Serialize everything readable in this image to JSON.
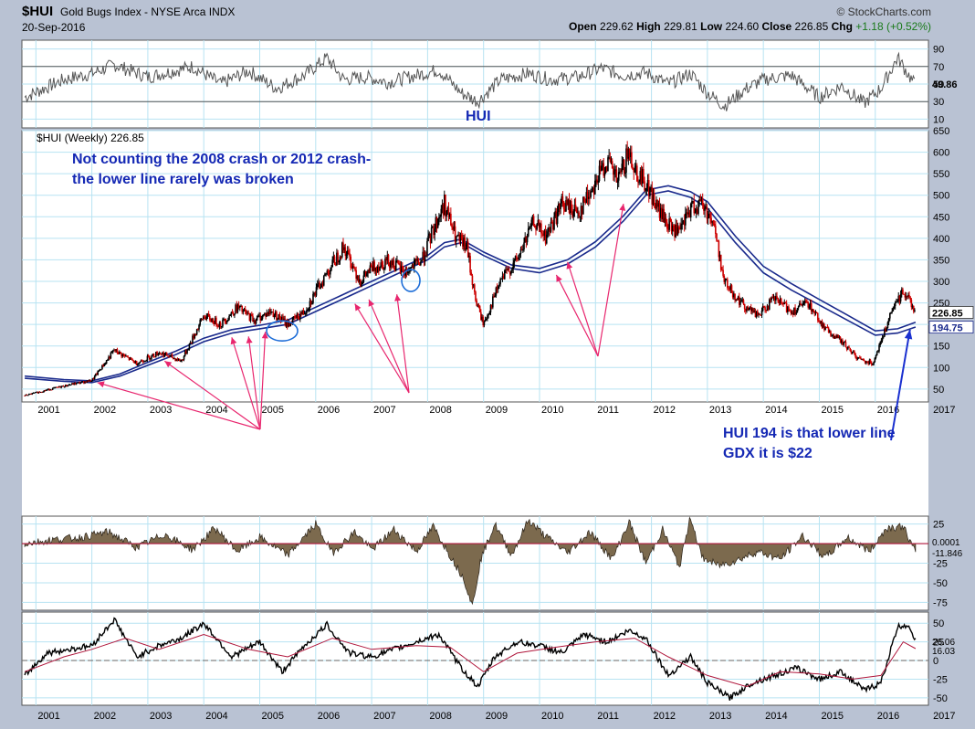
{
  "header": {
    "symbol": "$HUI",
    "name": "Gold Bugs Index - NYSE Arca INDX",
    "source": "© StockCharts.com",
    "date": "20-Sep-2016",
    "open_label": "Open",
    "open": "229.62",
    "high_label": "High",
    "high": "229.81",
    "low_label": "Low",
    "low": "224.60",
    "close_label": "Close",
    "close": "226.85",
    "chg_label": "Chg",
    "chg": "+1.18 (+0.52%)"
  },
  "annotations": {
    "rsi_label": "HUI",
    "note1_line1": "Not counting the 2008 crash or 2012 crash-",
    "note1_line2": "the lower line rarely was broken",
    "note2_line1": "HUI 194 is that lower line",
    "note2_line2": "GDX it is $22"
  },
  "colors": {
    "background": "#b9c2d3",
    "panel": "#ffffff",
    "grid": "#b7e3f2",
    "bar_up": "#000000",
    "bar_down": "#cc0000",
    "moving_average": "#1a2a8c",
    "arrows": "#e8266e",
    "annotation_text": "#1428b4",
    "histogram_fill": "#7c6a4e",
    "signal_line": "#b0173c"
  },
  "chart_data": [
    {
      "type": "line",
      "panel": "rsi",
      "title": "",
      "label": "HUI",
      "ylim": [
        0,
        100
      ],
      "y_ticks": [
        10,
        30,
        50,
        70,
        90
      ],
      "reference_lines": [
        30,
        70
      ],
      "last_value_label": "49.86",
      "x": [
        2000.8,
        2001.5,
        2002.0,
        2002.4,
        2003.0,
        2003.8,
        2004.3,
        2004.8,
        2005.3,
        2005.8,
        2006.2,
        2006.5,
        2006.9,
        2007.3,
        2007.8,
        2008.2,
        2008.6,
        2008.9,
        2009.3,
        2009.8,
        2010.2,
        2010.7,
        2011.1,
        2011.5,
        2011.9,
        2012.3,
        2012.7,
        2013.0,
        2013.3,
        2013.7,
        2014.0,
        2014.5,
        2015.0,
        2015.4,
        2015.8,
        2016.1,
        2016.4,
        2016.7
      ],
      "values": [
        35,
        55,
        62,
        72,
        58,
        70,
        50,
        65,
        45,
        60,
        80,
        55,
        58,
        52,
        60,
        66,
        40,
        30,
        55,
        62,
        55,
        58,
        68,
        60,
        63,
        50,
        62,
        40,
        25,
        45,
        55,
        60,
        35,
        48,
        28,
        45,
        80,
        50
      ],
      "grid": true
    },
    {
      "type": "candlestick",
      "panel": "price",
      "title": "",
      "legend": "$HUI (Weekly) 226.85",
      "ylim": [
        20,
        650
      ],
      "y_ticks": [
        50,
        100,
        150,
        200,
        250,
        300,
        350,
        400,
        450,
        500,
        550,
        600,
        650
      ],
      "x_ticks": [
        "2001",
        "2002",
        "2003",
        "2004",
        "2005",
        "2006",
        "2007",
        "2008",
        "2009",
        "2010",
        "2011",
        "2012",
        "2013",
        "2014",
        "2015",
        "2016",
        "2017"
      ],
      "last_value_labels": [
        "226.85",
        "194.75"
      ],
      "price": {
        "x": [
          2000.8,
          2001.2,
          2001.6,
          2002.0,
          2002.4,
          2002.8,
          2003.2,
          2003.6,
          2004.0,
          2004.3,
          2004.6,
          2004.9,
          2005.2,
          2005.5,
          2005.8,
          2006.2,
          2006.5,
          2006.8,
          2007.0,
          2007.3,
          2007.6,
          2007.9,
          2008.1,
          2008.3,
          2008.5,
          2008.7,
          2008.85,
          2009.0,
          2009.3,
          2009.6,
          2009.9,
          2010.1,
          2010.4,
          2010.7,
          2010.95,
          2011.2,
          2011.4,
          2011.6,
          2011.75,
          2011.9,
          2012.1,
          2012.3,
          2012.5,
          2012.7,
          2012.9,
          2013.1,
          2013.3,
          2013.6,
          2013.9,
          2014.2,
          2014.5,
          2014.8,
          2015.1,
          2015.4,
          2015.7,
          2015.95,
          2016.1,
          2016.3,
          2016.5,
          2016.6,
          2016.72
        ],
        "values": [
          35,
          48,
          60,
          70,
          140,
          110,
          135,
          115,
          220,
          200,
          240,
          210,
          230,
          200,
          230,
          320,
          380,
          300,
          330,
          350,
          320,
          350,
          420,
          480,
          400,
          380,
          260,
          200,
          300,
          350,
          440,
          400,
          480,
          460,
          520,
          580,
          530,
          600,
          550,
          530,
          470,
          430,
          410,
          470,
          480,
          440,
          300,
          250,
          220,
          260,
          230,
          250,
          190,
          160,
          120,
          110,
          160,
          230,
          280,
          260,
          226.85
        ]
      },
      "moving_average_lower": {
        "x": [
          2000.8,
          2001.5,
          2002.0,
          2002.5,
          2003.0,
          2003.5,
          2004.0,
          2004.5,
          2005.0,
          2005.5,
          2006.0,
          2006.5,
          2007.0,
          2007.5,
          2008.0,
          2008.3,
          2008.6,
          2009.0,
          2009.5,
          2010.0,
          2010.5,
          2011.0,
          2011.5,
          2011.9,
          2012.3,
          2012.7,
          2013.0,
          2013.5,
          2014.0,
          2014.5,
          2015.0,
          2015.5,
          2016.0,
          2016.4,
          2016.72
        ],
        "values": [
          75,
          68,
          65,
          80,
          105,
          130,
          160,
          180,
          190,
          200,
          230,
          260,
          290,
          320,
          350,
          380,
          390,
          360,
          330,
          320,
          340,
          380,
          440,
          500,
          510,
          495,
          470,
          390,
          320,
          280,
          245,
          210,
          175,
          180,
          194
        ]
      },
      "moving_average_upper": {
        "x": [
          2000.8,
          2001.5,
          2002.0,
          2002.5,
          2003.0,
          2003.5,
          2004.0,
          2004.5,
          2005.0,
          2005.5,
          2006.0,
          2006.5,
          2007.0,
          2007.5,
          2008.0,
          2008.3,
          2008.6,
          2009.0,
          2009.5,
          2010.0,
          2010.5,
          2011.0,
          2011.5,
          2011.9,
          2012.3,
          2012.7,
          2013.0,
          2013.5,
          2014.0,
          2014.5,
          2015.0,
          2015.5,
          2016.0,
          2016.4,
          2016.72
        ],
        "values": [
          80,
          72,
          69,
          85,
          112,
          138,
          168,
          188,
          198,
          210,
          240,
          270,
          300,
          330,
          360,
          390,
          398,
          368,
          338,
          330,
          350,
          392,
          452,
          512,
          522,
          508,
          485,
          405,
          335,
          295,
          258,
          222,
          185,
          190,
          205
        ]
      },
      "grid": true
    },
    {
      "type": "area",
      "panel": "histogram",
      "title": "",
      "ylim": [
        -85,
        35
      ],
      "y_ticks": [
        25,
        -25,
        -50,
        -75
      ],
      "last_value_labels": [
        "0.0001",
        "-11.846"
      ],
      "x": [
        2000.8,
        2001.3,
        2001.8,
        2002.3,
        2002.8,
        2003.3,
        2003.8,
        2004.2,
        2004.6,
        2005.0,
        2005.5,
        2006.0,
        2006.3,
        2006.7,
        2007.0,
        2007.4,
        2007.8,
        2008.1,
        2008.4,
        2008.65,
        2008.8,
        2008.95,
        2009.2,
        2009.5,
        2009.8,
        2010.1,
        2010.5,
        2010.9,
        2011.3,
        2011.6,
        2011.9,
        2012.2,
        2012.5,
        2012.7,
        2012.9,
        2013.2,
        2013.5,
        2013.9,
        2014.3,
        2014.7,
        2015.1,
        2015.5,
        2015.9,
        2016.2,
        2016.5,
        2016.72
      ],
      "values": [
        0,
        5,
        8,
        15,
        -5,
        12,
        -8,
        20,
        -10,
        8,
        -15,
        25,
        -12,
        15,
        -8,
        18,
        -10,
        22,
        -15,
        -45,
        -80,
        -20,
        25,
        -15,
        30,
        10,
        -12,
        15,
        -20,
        28,
        -25,
        18,
        -30,
        35,
        -18,
        -28,
        -22,
        -10,
        -20,
        10,
        -18,
        8,
        -10,
        20,
        22,
        -12
      ],
      "grid": true
    },
    {
      "type": "line",
      "panel": "oscillator",
      "title": "",
      "ylim": [
        -60,
        65
      ],
      "y_ticks": [
        50,
        25,
        0,
        -25,
        -50
      ],
      "x_ticks": [
        "2001",
        "2002",
        "2003",
        "2004",
        "2005",
        "2006",
        "2007",
        "2008",
        "2009",
        "2010",
        "2011",
        "2012",
        "2013",
        "2014",
        "2015",
        "2016",
        "2017"
      ],
      "last_value_labels": [
        "26.06",
        "16.03"
      ],
      "series": [
        {
          "role": "oscillator",
          "x": [
            2000.8,
            2001.2,
            2001.6,
            2002.0,
            2002.4,
            2002.8,
            2003.2,
            2003.6,
            2004.0,
            2004.5,
            2005.0,
            2005.4,
            2005.8,
            2006.2,
            2006.6,
            2007.0,
            2007.4,
            2007.8,
            2008.2,
            2008.6,
            2008.9,
            2009.2,
            2009.6,
            2010.0,
            2010.4,
            2010.8,
            2011.2,
            2011.6,
            2011.9,
            2012.3,
            2012.7,
            2013.0,
            2013.4,
            2013.8,
            2014.2,
            2014.6,
            2015.0,
            2015.4,
            2015.8,
            2016.1,
            2016.4,
            2016.6,
            2016.72
          ],
          "values": [
            -20,
            10,
            15,
            20,
            55,
            5,
            20,
            30,
            50,
            5,
            25,
            -15,
            20,
            48,
            10,
            5,
            15,
            25,
            35,
            -10,
            -35,
            5,
            25,
            20,
            10,
            35,
            25,
            40,
            30,
            -20,
            5,
            -30,
            -50,
            -30,
            -20,
            -10,
            -25,
            -15,
            -40,
            -30,
            45,
            48,
            26
          ]
        },
        {
          "role": "signal",
          "x": [
            2000.8,
            2001.5,
            2002.0,
            2002.6,
            2003.2,
            2004.0,
            2004.8,
            2005.5,
            2006.3,
            2007.0,
            2007.8,
            2008.4,
            2009.0,
            2009.6,
            2010.3,
            2011.0,
            2011.7,
            2012.3,
            2013.0,
            2013.7,
            2014.3,
            2015.0,
            2015.6,
            2016.1,
            2016.5,
            2016.72
          ],
          "values": [
            -15,
            5,
            15,
            30,
            15,
            35,
            15,
            5,
            30,
            15,
            20,
            18,
            -15,
            10,
            18,
            25,
            30,
            5,
            -20,
            -35,
            -15,
            -18,
            -25,
            -20,
            25,
            16
          ]
        }
      ],
      "grid": true
    }
  ]
}
